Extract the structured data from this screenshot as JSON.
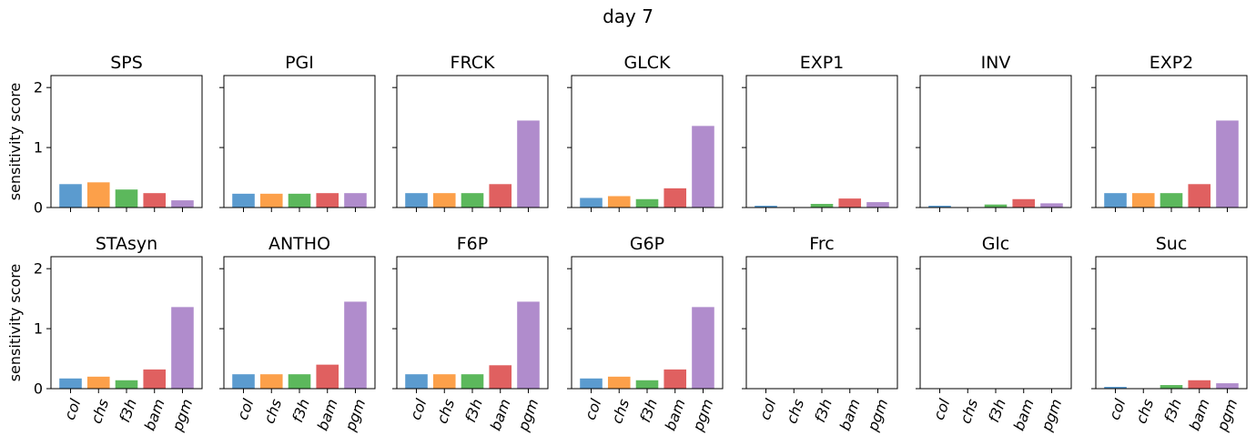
{
  "figure_title": "day 7",
  "colors": [
    "#5b9bcf",
    "#fca04a",
    "#5cb85c",
    "#e06060",
    "#b08ccc"
  ],
  "chart_data": {
    "type": "bar",
    "ylabel": "sensitivity score",
    "ylim": [
      0,
      2.2
    ],
    "yticks": [
      "0",
      "1",
      "2"
    ],
    "categories": [
      "col",
      "chs",
      "f3h",
      "bam",
      "pgm"
    ],
    "panels": [
      {
        "title": "SPS",
        "values": [
          0.39,
          0.42,
          0.3,
          0.24,
          0.12
        ]
      },
      {
        "title": "PGI",
        "values": [
          0.23,
          0.23,
          0.23,
          0.24,
          0.24
        ]
      },
      {
        "title": "FRCK",
        "values": [
          0.24,
          0.24,
          0.24,
          0.39,
          1.45
        ]
      },
      {
        "title": "GLCK",
        "values": [
          0.16,
          0.19,
          0.14,
          0.32,
          1.36
        ]
      },
      {
        "title": "EXP1",
        "values": [
          0.03,
          0.0,
          0.06,
          0.15,
          0.09
        ]
      },
      {
        "title": "INV",
        "values": [
          0.03,
          0.0,
          0.05,
          0.14,
          0.07
        ]
      },
      {
        "title": "EXP2",
        "values": [
          0.24,
          0.24,
          0.24,
          0.39,
          1.45
        ]
      },
      {
        "title": "STAsyn",
        "values": [
          0.17,
          0.2,
          0.14,
          0.32,
          1.36
        ]
      },
      {
        "title": "ANTHO",
        "values": [
          0.24,
          0.24,
          0.24,
          0.4,
          1.45
        ]
      },
      {
        "title": "F6P",
        "values": [
          0.24,
          0.24,
          0.24,
          0.39,
          1.45
        ]
      },
      {
        "title": "G6P",
        "values": [
          0.17,
          0.2,
          0.14,
          0.32,
          1.36
        ]
      },
      {
        "title": "Frc",
        "values": [
          0,
          0,
          0,
          0,
          0
        ]
      },
      {
        "title": "Glc",
        "values": [
          0,
          0,
          0,
          0,
          0
        ]
      },
      {
        "title": "Suc",
        "values": [
          0.03,
          0.0,
          0.06,
          0.14,
          0.09
        ]
      }
    ]
  }
}
